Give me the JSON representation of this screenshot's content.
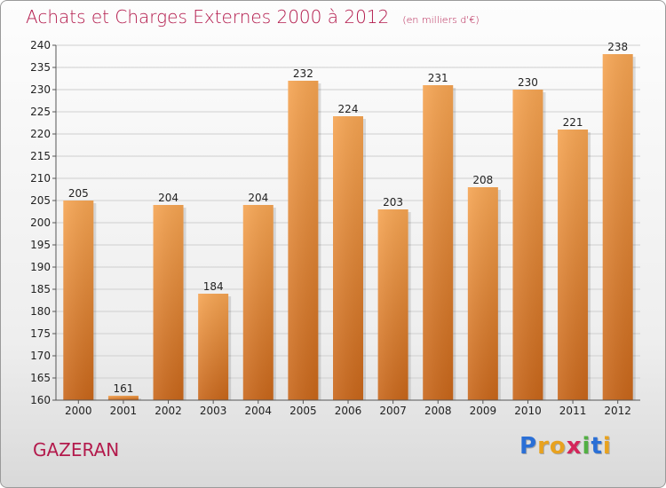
{
  "title": "Achats et Charges Externes 2000 à 2012",
  "subtitle": "(en milliers d'€)",
  "commune": "GAZERAN",
  "logo": {
    "letters": [
      "P",
      "r",
      "o",
      "x",
      "i",
      "t",
      "i"
    ],
    "colors": [
      "#2a6fd6",
      "#e8a21f",
      "#e8a21f",
      "#d4265a",
      "#52b043",
      "#2a6fd6",
      "#e8a21f"
    ]
  },
  "colors": {
    "bar_top": "#f5a452",
    "bar_bottom": "#c8661a",
    "title": "#b31a4c"
  },
  "chart_data": {
    "type": "bar",
    "title": "Achats et Charges Externes 2000 à 2012",
    "subtitle": "(en milliers d'€)",
    "categories": [
      "2000",
      "2001",
      "2002",
      "2003",
      "2004",
      "2005",
      "2006",
      "2007",
      "2008",
      "2009",
      "2010",
      "2011",
      "2012"
    ],
    "values": [
      205,
      161,
      204,
      184,
      204,
      232,
      224,
      203,
      231,
      208,
      230,
      221,
      238
    ],
    "ylim": [
      160,
      240
    ],
    "yticks": [
      160,
      165,
      170,
      175,
      180,
      185,
      190,
      195,
      200,
      205,
      210,
      215,
      220,
      225,
      230,
      235,
      240
    ],
    "grid": true,
    "xlabel": "",
    "ylabel": ""
  }
}
